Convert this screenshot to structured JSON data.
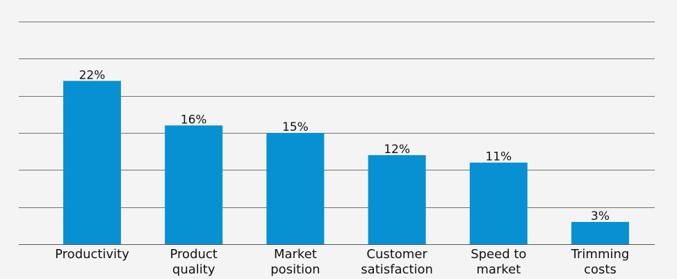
{
  "chart_data": {
    "type": "bar",
    "categories": [
      [
        "Productivity"
      ],
      [
        "Product",
        "quality"
      ],
      [
        "Market",
        "position"
      ],
      [
        "Customer",
        "satisfaction"
      ],
      [
        "Speed to",
        "market"
      ],
      [
        "Trimming",
        "costs"
      ]
    ],
    "values": [
      22,
      16,
      15,
      12,
      11,
      3
    ],
    "value_labels": [
      "22%",
      "16%",
      "15%",
      "12%",
      "11%",
      "3%"
    ],
    "ylim": [
      0,
      30
    ],
    "ytick_step": 5,
    "grid": true,
    "title": "",
    "xlabel": "",
    "ylabel": ""
  },
  "colors": {
    "bar": "#0791d2",
    "background": "#f4f4f4"
  }
}
